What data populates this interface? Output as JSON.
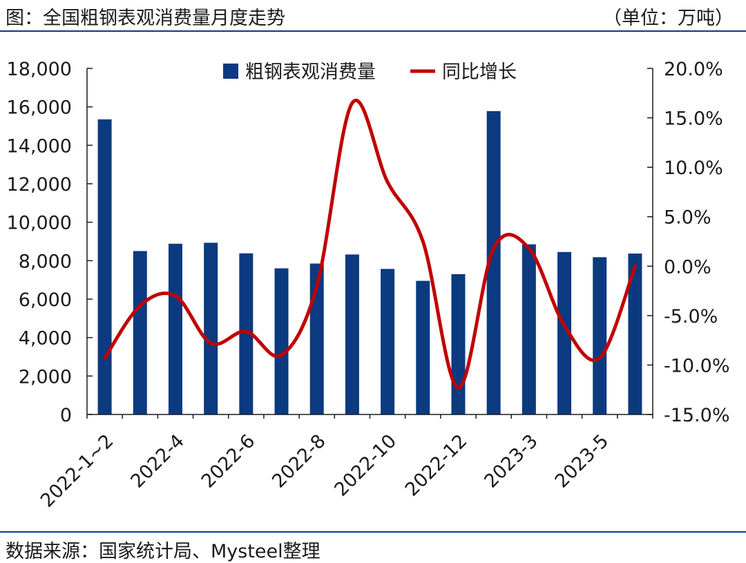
{
  "header": {
    "title": "图：全国粗钢表观消费量月度走势",
    "unit": "（单位：万吨）"
  },
  "footer": {
    "source": "数据来源：国家统计局、Mysteel整理"
  },
  "chart_data": {
    "type": "bar",
    "categories": [
      "2022-1~2",
      "2022-3",
      "2022-4",
      "2022-5",
      "2022-6",
      "2022-7",
      "2022-8",
      "2022-9",
      "2022-10",
      "2022-11",
      "2022-12",
      "2023-1~2",
      "2023-3",
      "2023-4",
      "2023-5",
      "2023-6"
    ],
    "x_tick_labels": [
      "2022-1~2",
      "2022-4",
      "2022-6",
      "2022-8",
      "2022-10",
      "2022-12",
      "2023-3",
      "2023-5"
    ],
    "series": [
      {
        "name": "粗钢表观消费量",
        "type": "bar",
        "axis": "left",
        "color": "#0b3a80",
        "values": [
          15350,
          8500,
          8880,
          8930,
          8380,
          7600,
          7850,
          8320,
          7570,
          6950,
          7300,
          15780,
          8850,
          8450,
          8180,
          8370
        ]
      },
      {
        "name": "同比增长",
        "type": "line",
        "axis": "right",
        "color": "#c00000",
        "values": [
          -9.3,
          -4.0,
          -3.0,
          -7.8,
          -6.6,
          -9.0,
          -2.0,
          16.5,
          8.5,
          2.5,
          -12.3,
          1.8,
          1.8,
          -6.0,
          -9.3,
          0.0
        ]
      }
    ],
    "y_left": {
      "min": 0,
      "max": 18000,
      "ticks": [
        "0",
        "2,000",
        "4,000",
        "6,000",
        "8,000",
        "10,000",
        "12,000",
        "14,000",
        "16,000",
        "18,000"
      ]
    },
    "y_right": {
      "min": -15,
      "max": 20,
      "ticks": [
        "-15.0%",
        "-10.0%",
        "-5.0%",
        "0.0%",
        "5.0%",
        "10.0%",
        "15.0%",
        "20.0%"
      ]
    },
    "legend_position": "top-center",
    "grid": false
  }
}
